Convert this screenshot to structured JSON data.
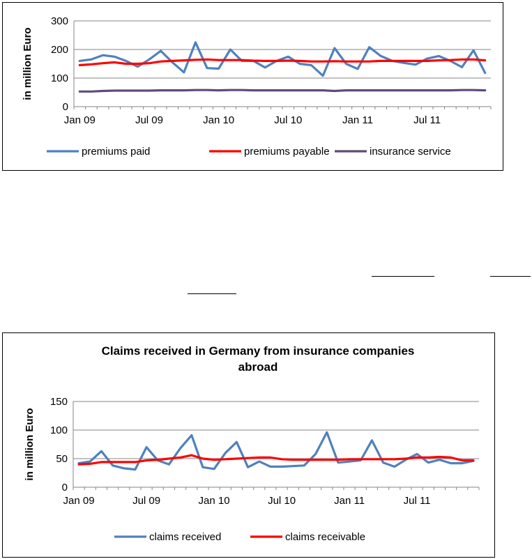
{
  "charts": [
    {
      "type": "line",
      "title": "",
      "ylabel": "in million Euro",
      "xlabel": "",
      "ylim": [
        0,
        300
      ],
      "yticks": [
        0,
        100,
        200,
        300
      ],
      "xtick_labels": [
        "Jan 09",
        "Jul 09",
        "Jan 10",
        "Jul 10",
        "Jan 11",
        "Jul 11"
      ],
      "xtick_months": [
        0,
        6,
        12,
        18,
        24,
        30
      ],
      "grid": true,
      "legend": "bottom",
      "n_months": 36,
      "series": [
        {
          "name": "premiums paid",
          "color": "#4f81bd",
          "values": [
            160,
            165,
            180,
            175,
            160,
            140,
            165,
            195,
            155,
            120,
            225,
            135,
            133,
            200,
            160,
            160,
            137,
            160,
            175,
            150,
            145,
            108,
            205,
            150,
            132,
            208,
            177,
            160,
            153,
            147,
            168,
            177,
            160,
            138,
            197,
            118
          ]
        },
        {
          "name": "premiums payable",
          "color": "#ff0000",
          "values": [
            145,
            148,
            152,
            155,
            150,
            150,
            152,
            158,
            160,
            162,
            164,
            165,
            163,
            163,
            163,
            161,
            160,
            160,
            161,
            160,
            158,
            158,
            159,
            158,
            158,
            158,
            160,
            160,
            160,
            160,
            160,
            162,
            163,
            165,
            165,
            162
          ]
        },
        {
          "name": "insurance service",
          "color": "#604a7b",
          "values": [
            53,
            53,
            55,
            56,
            56,
            56,
            56,
            57,
            57,
            57,
            58,
            58,
            57,
            58,
            58,
            57,
            57,
            57,
            57,
            57,
            57,
            57,
            55,
            57,
            57,
            57,
            57,
            57,
            57,
            57,
            57,
            57,
            57,
            58,
            58,
            57
          ]
        }
      ]
    },
    {
      "type": "line",
      "title": "Claims received in Germany from insurance companies abroad",
      "title_lines": [
        "Claims received in Germany from insurance companies",
        "abroad"
      ],
      "ylabel": "in million Euro",
      "xlabel": "",
      "ylim": [
        0,
        150
      ],
      "yticks": [
        0,
        50,
        100,
        150
      ],
      "xtick_labels": [
        "Jan 09",
        "Jul 09",
        "Jan 10",
        "Jul 10",
        "Jan 11",
        "Jul 11"
      ],
      "xtick_months": [
        0,
        6,
        12,
        18,
        24,
        30
      ],
      "grid": true,
      "legend": "bottom",
      "n_months": 36,
      "series": [
        {
          "name": "claims received",
          "color": "#4f81bd",
          "values": [
            42,
            45,
            63,
            38,
            33,
            31,
            70,
            47,
            40,
            68,
            91,
            35,
            32,
            60,
            79,
            35,
            45,
            36,
            36,
            37,
            38,
            58,
            96,
            43,
            45,
            47,
            82,
            43,
            36,
            48,
            58,
            43,
            48,
            42,
            42,
            46
          ]
        },
        {
          "name": "claims receivable",
          "color": "#ff0000",
          "values": [
            40,
            41,
            44,
            44,
            44,
            44,
            47,
            48,
            50,
            52,
            56,
            50,
            48,
            49,
            50,
            51,
            52,
            52,
            49,
            48,
            48,
            48,
            48,
            48,
            49,
            49,
            49,
            49,
            49,
            50,
            52,
            52,
            53,
            52,
            47,
            47
          ]
        }
      ]
    }
  ]
}
